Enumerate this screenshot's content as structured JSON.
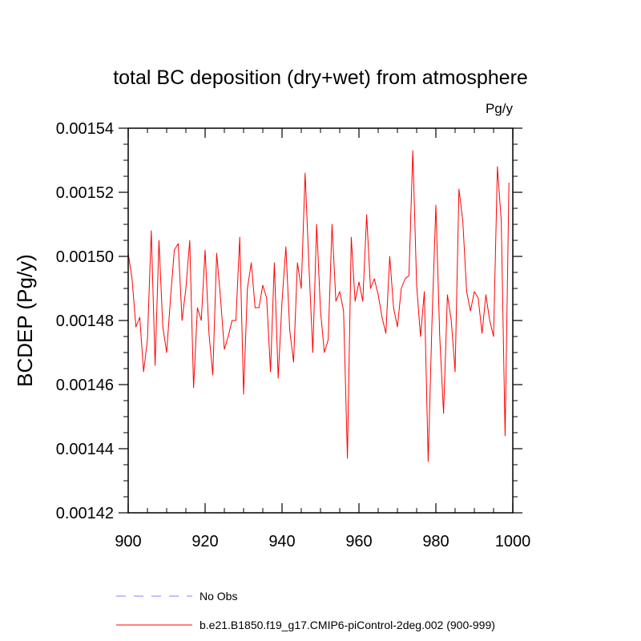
{
  "chart_data": {
    "type": "line",
    "title": "total BC deposition (dry+wet) from atmosphere",
    "units_label": "Pg/y",
    "ylabel": "BCDEP  (Pg/y)",
    "xlabel": "",
    "xlim": [
      900,
      1000
    ],
    "ylim": [
      0.00142,
      0.00154
    ],
    "x_ticks": [
      900,
      920,
      940,
      960,
      980,
      1000
    ],
    "x_tick_labels": [
      "900",
      "920",
      "940",
      "960",
      "980",
      "1000"
    ],
    "y_ticks": [
      0.00142,
      0.00144,
      0.00146,
      0.00148,
      0.0015,
      0.00152,
      0.00154
    ],
    "y_tick_labels": [
      "0.00142",
      "0.00144",
      "0.00146",
      "0.00148",
      "0.00150",
      "0.00152",
      "0.00154"
    ],
    "grid": false,
    "legend_placement": "bottom",
    "legend": [
      {
        "label": "No Obs",
        "color": "#8080ff",
        "dash": "dashed"
      },
      {
        "label": "b.e21.B1850.f19_g17.CMIP6-piControl-2deg.002 (900-999)",
        "color": "#ff0000",
        "dash": "solid"
      }
    ],
    "series": [
      {
        "name": "b.e21.B1850.f19_g17.CMIP6-piControl-2deg.002 (900-999)",
        "color": "#ff0000",
        "x": [
          900,
          901,
          902,
          903,
          904,
          905,
          906,
          907,
          908,
          909,
          910,
          911,
          912,
          913,
          914,
          915,
          916,
          917,
          918,
          919,
          920,
          921,
          922,
          923,
          924,
          925,
          926,
          927,
          928,
          929,
          930,
          931,
          932,
          933,
          934,
          935,
          936,
          937,
          938,
          939,
          940,
          941,
          942,
          943,
          944,
          945,
          946,
          947,
          948,
          949,
          950,
          951,
          952,
          953,
          954,
          955,
          956,
          957,
          958,
          959,
          960,
          961,
          962,
          963,
          964,
          965,
          966,
          967,
          968,
          969,
          970,
          971,
          972,
          973,
          974,
          975,
          976,
          977,
          978,
          979,
          980,
          981,
          982,
          983,
          984,
          985,
          986,
          987,
          988,
          989,
          990,
          991,
          992,
          993,
          994,
          995,
          996,
          997,
          998,
          999
        ],
        "values": [
          0.001501,
          0.001493,
          0.001478,
          0.001481,
          0.001464,
          0.001474,
          0.001508,
          0.001466,
          0.001505,
          0.001478,
          0.00147,
          0.001487,
          0.001502,
          0.001504,
          0.00148,
          0.00149,
          0.001505,
          0.001459,
          0.001484,
          0.00148,
          0.001502,
          0.001476,
          0.001463,
          0.001501,
          0.001487,
          0.001471,
          0.001475,
          0.00148,
          0.00148,
          0.001506,
          0.001457,
          0.00149,
          0.001498,
          0.001484,
          0.001484,
          0.001491,
          0.001487,
          0.001464,
          0.001498,
          0.001462,
          0.001486,
          0.001503,
          0.001477,
          0.001467,
          0.001498,
          0.00149,
          0.001526,
          0.001497,
          0.00147,
          0.00151,
          0.001483,
          0.00147,
          0.001474,
          0.00151,
          0.001486,
          0.001489,
          0.001483,
          0.001437,
          0.001506,
          0.001486,
          0.001492,
          0.001486,
          0.001513,
          0.00149,
          0.001493,
          0.001488,
          0.001481,
          0.001476,
          0.0015,
          0.001484,
          0.001478,
          0.00149,
          0.001493,
          0.001494,
          0.001533,
          0.001491,
          0.001475,
          0.001489,
          0.001436,
          0.00148,
          0.001516,
          0.001475,
          0.001451,
          0.001488,
          0.00148,
          0.001464,
          0.001521,
          0.001511,
          0.001489,
          0.001483,
          0.001489,
          0.001487,
          0.001476,
          0.001488,
          0.00148,
          0.001475,
          0.001528,
          0.001511,
          0.001444,
          0.001523
        ]
      }
    ]
  }
}
